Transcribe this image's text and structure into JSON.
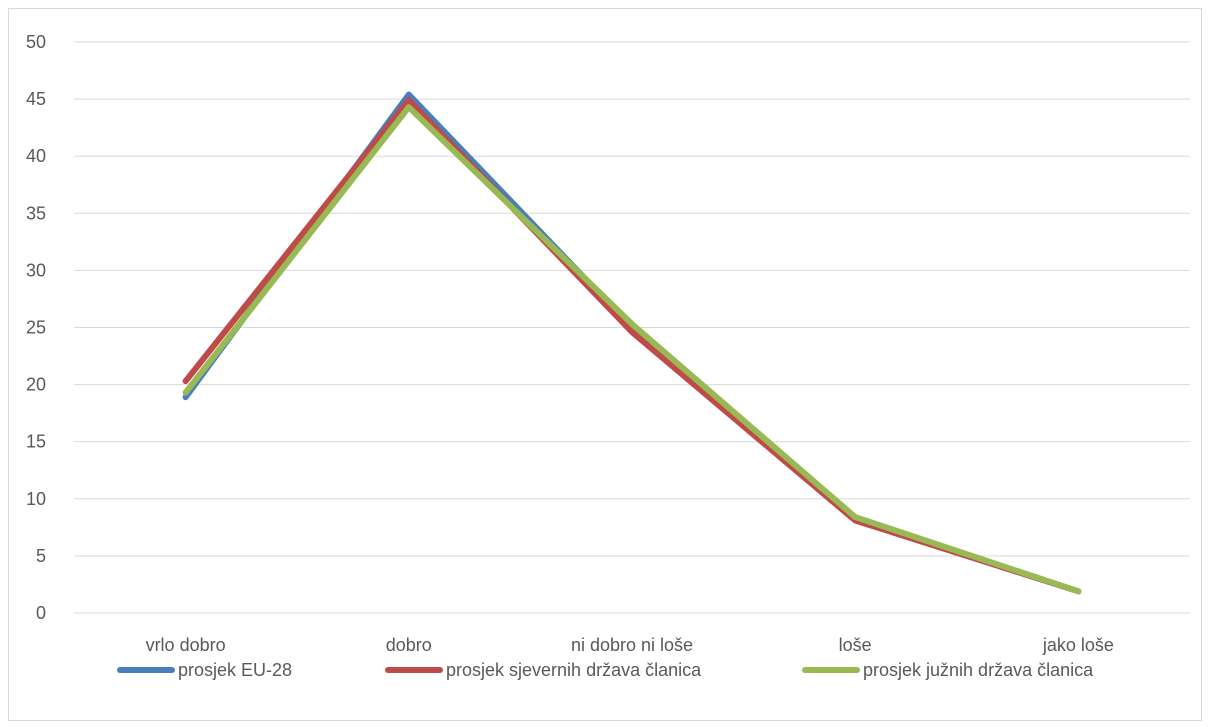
{
  "chart_data": {
    "type": "line",
    "categories": [
      "vrlo dobro",
      "dobro",
      "ni dobro ni loše",
      "loše",
      "jako loše"
    ],
    "series": [
      {
        "name": "prosjek EU-28",
        "color": "#4a7ebb",
        "values": [
          18.9,
          45.4,
          25.0,
          8.2,
          1.9
        ]
      },
      {
        "name": "prosjek sjevernih država članica",
        "color": "#be4b48",
        "values": [
          20.3,
          44.9,
          24.6,
          8.1,
          1.9
        ]
      },
      {
        "name": "prosjek južnih država članica",
        "color": "#98b954",
        "values": [
          19.3,
          44.3,
          25.3,
          8.4,
          1.9
        ]
      }
    ],
    "yticks": [
      0,
      5,
      10,
      15,
      20,
      25,
      30,
      35,
      40,
      45,
      50
    ],
    "ylim": [
      0,
      50
    ],
    "grid": true,
    "legend": "bottom"
  }
}
